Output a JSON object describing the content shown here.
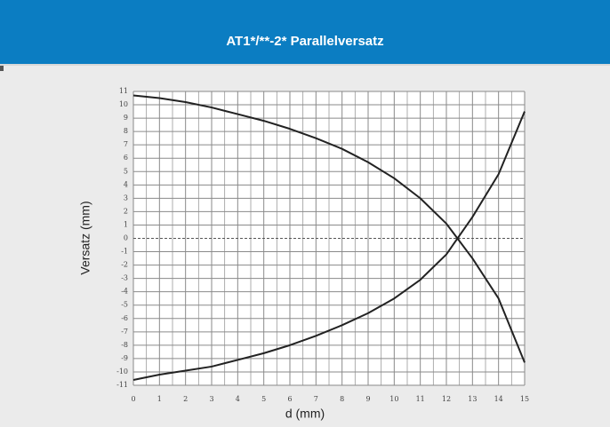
{
  "chart_data": {
    "type": "line",
    "title": "AT1*/**-2* Parallelversatz",
    "xlabel": "d (mm)",
    "ylabel": "Versatz (mm)",
    "x": [
      0,
      1,
      2,
      3,
      4,
      5,
      6,
      7,
      8,
      9,
      10,
      11,
      12,
      13,
      14,
      15
    ],
    "series": [
      {
        "color": "#222222",
        "values": [
          10.7,
          10.5,
          10.2,
          9.8,
          9.3,
          8.8,
          8.2,
          7.5,
          6.7,
          5.7,
          4.5,
          3.0,
          1.1,
          -1.5,
          -4.5,
          -9.3
        ]
      },
      {
        "color": "#222222",
        "values": [
          -10.6,
          -10.2,
          -9.9,
          -9.6,
          -9.1,
          -8.6,
          -8.0,
          -7.3,
          -6.5,
          -5.6,
          -4.5,
          -3.1,
          -1.2,
          1.6,
          4.8,
          9.5
        ]
      }
    ],
    "xlim": [
      0,
      15
    ],
    "ylim": [
      -11,
      11
    ],
    "xticks": [
      0,
      1,
      2,
      3,
      4,
      5,
      6,
      7,
      8,
      9,
      10,
      11,
      12,
      13,
      14,
      15
    ],
    "yticks": [
      -11,
      -10,
      -9,
      -8,
      -7,
      -6,
      -5,
      -4,
      -3,
      -2,
      -1,
      0,
      1,
      2,
      3,
      4,
      5,
      6,
      7,
      8,
      9,
      10,
      11
    ],
    "grid": true
  }
}
